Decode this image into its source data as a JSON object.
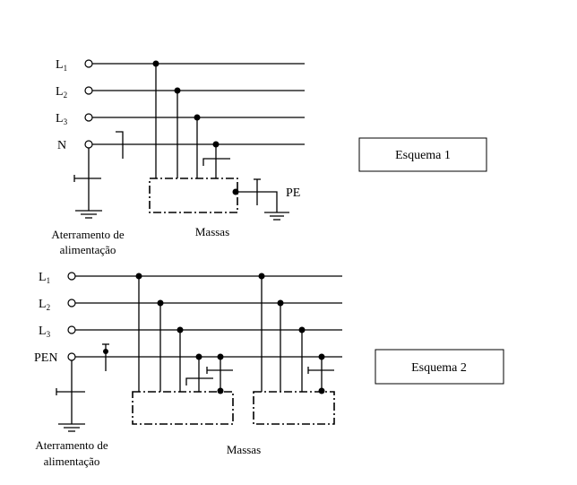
{
  "scheme1": {
    "title": "Esquema 1",
    "conductors": [
      {
        "name": "L",
        "sub": "1"
      },
      {
        "name": "L",
        "sub": "2"
      },
      {
        "name": "L",
        "sub": "3"
      },
      {
        "name": "N",
        "sub": ""
      }
    ],
    "pe_label": "PE",
    "source_ground_label_1": "Aterramento de",
    "source_ground_label_2": "alimentação",
    "masses_label": "Massas"
  },
  "scheme2": {
    "title": "Esquema 2",
    "conductors": [
      {
        "name": "L",
        "sub": "1"
      },
      {
        "name": "L",
        "sub": "2"
      },
      {
        "name": "L",
        "sub": "3"
      },
      {
        "name": "PEN",
        "sub": ""
      }
    ],
    "source_ground_label_1": "Aterramento de",
    "source_ground_label_2": "alimentação",
    "masses_label": "Massas"
  }
}
